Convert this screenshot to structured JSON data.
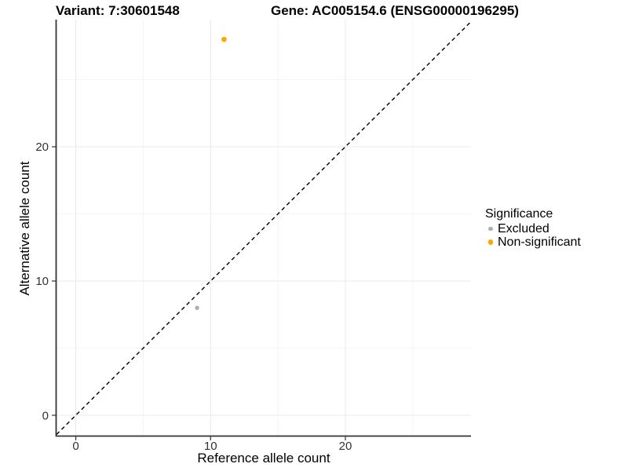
{
  "figure": {
    "variant_title": "Variant: 7:30601548",
    "gene_title": "Gene: AC005154.6 (ENSG00000196295)"
  },
  "chart_data": {
    "type": "scatter",
    "title": "Variant: 7:30601548 / Gene: AC005154.6 (ENSG00000196295)",
    "xlabel": "Reference allele count",
    "ylabel": "Alternative allele count",
    "xlim": [
      -1.43,
      29.32
    ],
    "ylim": [
      -1.52,
      29.47
    ],
    "x_major_ticks": [
      0,
      10,
      20
    ],
    "y_major_ticks": [
      0,
      10,
      20
    ],
    "x_minor_gridlines": [
      5,
      15,
      25
    ],
    "y_minor_gridlines": [
      5,
      15,
      25
    ],
    "grid": "major and minor gridlines, white panel background",
    "legend": {
      "title": "Significance",
      "position": "right"
    },
    "reference_line": {
      "kind": "identity y=x diagonal",
      "style": "dashed",
      "color": "#000000"
    },
    "series": [
      {
        "name": "Excluded",
        "color": "#ADADAD",
        "point_radius": 2.7,
        "points": [
          {
            "x": 9,
            "y": 8
          }
        ]
      },
      {
        "name": "Non-significant",
        "color": "#FFA500",
        "point_radius": 3.3,
        "points": [
          {
            "x": 11,
            "y": 28
          }
        ]
      }
    ],
    "colors": {
      "grid_major": "#E9E9E9",
      "grid_minor": "#F4F4F4",
      "axis_line": "#333333",
      "tick_mark": "#333333",
      "tick_label": "#333333",
      "background": "#FFFFFF"
    }
  }
}
